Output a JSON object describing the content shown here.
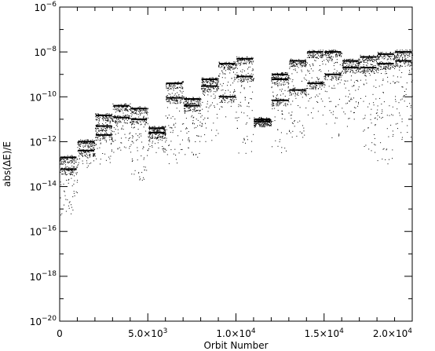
{
  "chart_data": {
    "type": "scatter",
    "title": "",
    "xlabel": "Orbit Number",
    "ylabel": "abs(ΔE)/E",
    "xlim": [
      0,
      20000
    ],
    "ylim": [
      1e-20,
      1e-06
    ],
    "yscale": "log",
    "grid": false,
    "legend": "none",
    "x_ticks": [
      {
        "value": 0,
        "label": "0"
      },
      {
        "value": 5000,
        "label": "5.0×10",
        "exp": "3"
      },
      {
        "value": 10000,
        "label": "1.0×10",
        "exp": "4"
      },
      {
        "value": 15000,
        "label": "1.5×10",
        "exp": "4"
      },
      {
        "value": 20000,
        "label": "2.0×10",
        "exp": "4"
      }
    ],
    "y_ticks": [
      {
        "value": 1e-06,
        "label": "10",
        "exp": "−6"
      },
      {
        "value": 1e-08,
        "label": "10",
        "exp": "−8"
      },
      {
        "value": 1e-10,
        "label": "10",
        "exp": "−10"
      },
      {
        "value": 1e-12,
        "label": "10",
        "exp": "−12"
      },
      {
        "value": 1e-14,
        "label": "10",
        "exp": "−14"
      },
      {
        "value": 1e-16,
        "label": "10",
        "exp": "−16"
      },
      {
        "value": 1e-18,
        "label": "10",
        "exp": "−18"
      },
      {
        "value": 1e-20,
        "label": "10",
        "exp": "−20"
      }
    ],
    "segments": [
      {
        "x": [
          0,
          1000
        ],
        "levels": [
          2e-13,
          6e-14
        ],
        "tail_min": 5e-16
      },
      {
        "x": [
          1000,
          2000
        ],
        "levels": [
          1e-12,
          4e-13
        ],
        "tail_min": 6e-14
      },
      {
        "x": [
          2000,
          3000
        ],
        "levels": [
          1.5e-11,
          5e-12,
          2e-12
        ],
        "tail_min": 1e-13
      },
      {
        "x": [
          3000,
          4000
        ],
        "levels": [
          4e-11,
          1.2e-11
        ],
        "tail_min": 3e-13
      },
      {
        "x": [
          4000,
          5000
        ],
        "levels": [
          3e-11,
          1e-11
        ],
        "tail_min": 2e-14
      },
      {
        "x": [
          5000,
          6000
        ],
        "levels": [
          4e-12,
          2.5e-12
        ],
        "tail_min": 3e-13
      },
      {
        "x": [
          6000,
          7000
        ],
        "levels": [
          4e-10,
          9e-11
        ],
        "tail_min": 1e-13
      },
      {
        "x": [
          7000,
          8000
        ],
        "levels": [
          8e-11,
          4e-11
        ],
        "tail_min": 2e-13
      },
      {
        "x": [
          8000,
          9000
        ],
        "levels": [
          6e-10,
          3e-10
        ],
        "tail_min": 1e-12
      },
      {
        "x": [
          9000,
          10000
        ],
        "levels": [
          3e-09,
          1e-10
        ],
        "tail_min": 1e-11
      },
      {
        "x": [
          10000,
          11000
        ],
        "levels": [
          5e-09,
          8e-10
        ],
        "tail_min": 3e-13
      },
      {
        "x": [
          11000,
          12000
        ],
        "levels": [
          1e-11,
          8e-12
        ],
        "tail_min": 5e-12
      },
      {
        "x": [
          12000,
          13000
        ],
        "levels": [
          1e-09,
          6e-10,
          7e-11
        ],
        "tail_min": 3e-13
      },
      {
        "x": [
          13000,
          14000
        ],
        "levels": [
          4e-09,
          2e-10
        ],
        "tail_min": 1e-12
      },
      {
        "x": [
          14000,
          15000
        ],
        "levels": [
          1e-08,
          4e-10
        ],
        "tail_min": 1e-11
      },
      {
        "x": [
          15000,
          16000
        ],
        "levels": [
          1e-08,
          1e-09
        ],
        "tail_min": 1e-12
      },
      {
        "x": [
          16000,
          17000
        ],
        "levels": [
          4e-09,
          2e-09
        ],
        "tail_min": 5e-12
      },
      {
        "x": [
          17000,
          18000
        ],
        "levels": [
          6e-09,
          2e-09
        ],
        "tail_min": 3e-13
      },
      {
        "x": [
          18000,
          19000
        ],
        "levels": [
          8e-09,
          3e-09
        ],
        "tail_min": 1e-13
      },
      {
        "x": [
          19000,
          20000
        ],
        "levels": [
          1e-08,
          4e-09
        ],
        "tail_min": 1e-12
      }
    ]
  }
}
